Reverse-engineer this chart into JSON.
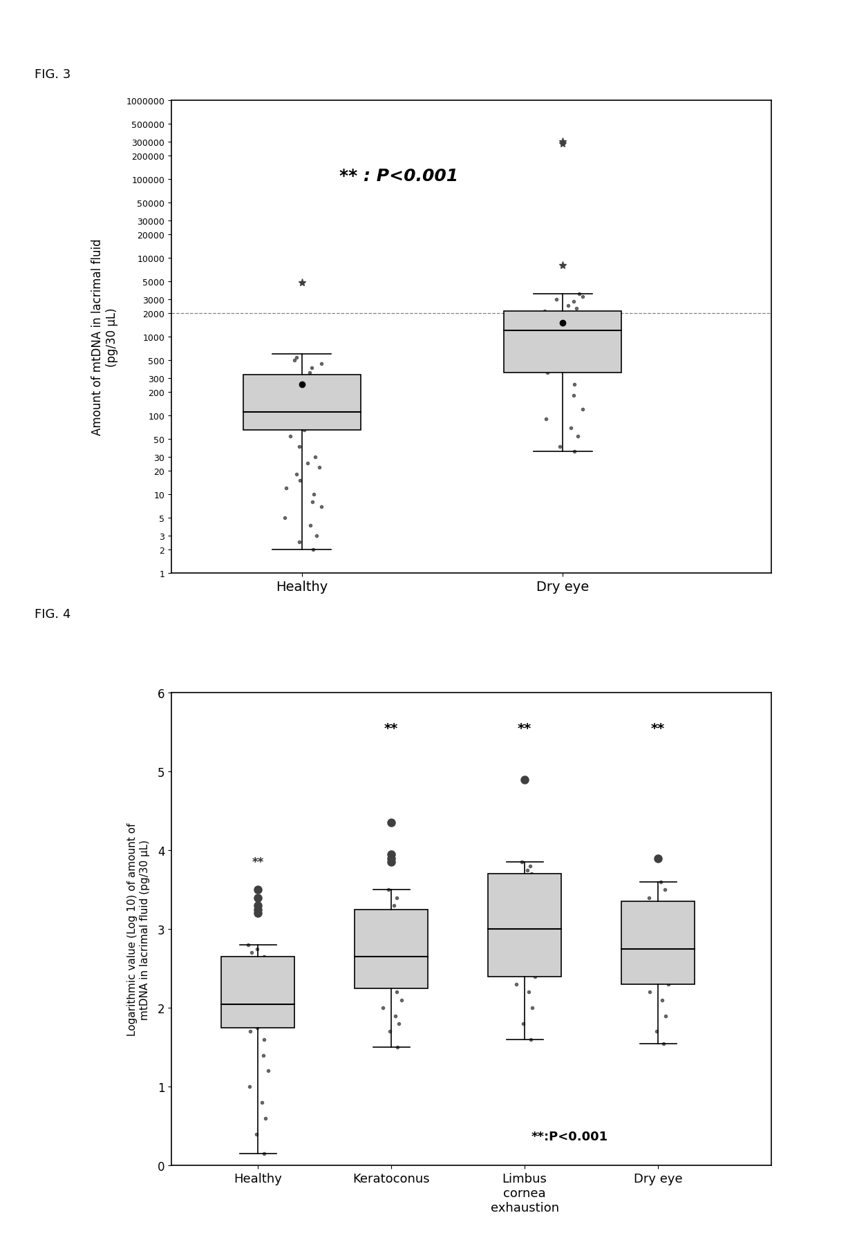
{
  "fig3": {
    "title": "FIG. 3",
    "ylabel_line1": "Amount of mtDNA in lacrimal fluid",
    "ylabel_line2": "(pg/30 μL)",
    "categories": [
      "Healthy",
      "Dry eye"
    ],
    "annotation": "** : P<0.001",
    "yticks": [
      1,
      2,
      3,
      5,
      10,
      20,
      30,
      50,
      100,
      200,
      300,
      500,
      1000,
      2000,
      3000,
      5000,
      10000,
      20000,
      30000,
      50000,
      100000,
      200000,
      300000,
      500000,
      1000000
    ],
    "ytick_labels": [
      "1",
      "2",
      "3",
      "5",
      "10",
      "20",
      "30",
      "50",
      "100",
      "200",
      "300",
      "500",
      "1000",
      "2000",
      "3000",
      "5000",
      "10000",
      "20000",
      "30000",
      "50000",
      "100000",
      "200000",
      "300000",
      "500000",
      "1000000"
    ],
    "healthy_box": {
      "q1": 65,
      "median": 110,
      "q3": 330,
      "whisker_low": 2,
      "whisker_high": 600,
      "mean": 250
    },
    "dryeye_box": {
      "q1": 350,
      "median": 1200,
      "q3": 2100,
      "whisker_low": 35,
      "whisker_high": 3500,
      "mean": 1500
    },
    "healthy_outliers": [
      4800
    ],
    "dryeye_outliers": [
      8000,
      300000,
      280000
    ],
    "healthy_scatter": [
      2,
      2.5,
      3,
      4,
      5,
      7,
      8,
      10,
      12,
      15,
      18,
      22,
      25,
      30,
      40,
      55,
      65,
      70,
      80,
      90,
      100,
      110,
      130,
      150,
      180,
      200,
      220,
      260,
      300,
      350,
      400,
      450,
      500,
      550
    ],
    "dryeye_scatter": [
      35,
      40,
      55,
      70,
      90,
      120,
      180,
      250,
      350,
      500,
      650,
      800,
      1000,
      1200,
      1400,
      1600,
      1900,
      2100,
      2300,
      2500,
      2800,
      3000,
      3200,
      3500
    ],
    "hline_y": 2000,
    "box_color": "#d0d0d0",
    "scatter_color": "#404040"
  },
  "fig4": {
    "title": "FIG. 4",
    "ylabel": "Logarithmic value (Log 10) of amount of\nmtDNA in lacrimal fluid (pg/30 μL)",
    "categories": [
      "Healthy",
      "Keratoconus",
      "Limbus\ncornea\nexhaustion",
      "Dry eye"
    ],
    "annotation": "**:P<0.001",
    "ylim": [
      0,
      6
    ],
    "yticks": [
      0,
      1,
      2,
      3,
      4,
      5,
      6
    ],
    "healthy_box": {
      "q1": 1.75,
      "median": 2.05,
      "q3": 2.65,
      "whisker_low": 0.15,
      "whisker_high": 2.8
    },
    "keratoconus_box": {
      "q1": 2.25,
      "median": 2.65,
      "q3": 3.25,
      "whisker_low": 1.5,
      "whisker_high": 3.5
    },
    "limbus_box": {
      "q1": 2.4,
      "median": 3.0,
      "q3": 3.7,
      "whisker_low": 1.6,
      "whisker_high": 3.85
    },
    "dryeye_box": {
      "q1": 2.3,
      "median": 2.75,
      "q3": 3.35,
      "whisker_low": 1.55,
      "whisker_high": 3.6
    },
    "healthy_outliers": [
      3.2,
      3.25,
      3.3,
      3.4,
      3.5
    ],
    "keratoconus_outliers": [
      4.35,
      3.85,
      3.9,
      3.95
    ],
    "limbus_outliers": [
      4.9
    ],
    "dryeye_outliers": [
      3.9
    ],
    "healthy_sig": false,
    "keratoconus_sig": true,
    "limbus_sig": true,
    "dryeye_sig": true,
    "box_color": "#d0d0d0",
    "scatter_color": "#404040",
    "scatter_data": [
      [
        0.15,
        0.4,
        0.6,
        0.8,
        1.0,
        1.2,
        1.4,
        1.6,
        1.7,
        1.75,
        1.8,
        1.85,
        1.9,
        1.95,
        2.0,
        2.05,
        2.1,
        2.15,
        2.2,
        2.25,
        2.3,
        2.4,
        2.5,
        2.6,
        2.65,
        2.7,
        2.75,
        2.8
      ],
      [
        1.5,
        1.7,
        1.8,
        1.9,
        2.0,
        2.1,
        2.2,
        2.3,
        2.4,
        2.5,
        2.6,
        2.65,
        2.7,
        2.75,
        2.8,
        2.9,
        3.0,
        3.1,
        3.2,
        3.3,
        3.4,
        3.5
      ],
      [
        1.6,
        1.8,
        2.0,
        2.2,
        2.3,
        2.4,
        2.5,
        2.6,
        2.7,
        2.8,
        2.9,
        3.0,
        3.1,
        3.2,
        3.3,
        3.4,
        3.5,
        3.6,
        3.7,
        3.75,
        3.8,
        3.85
      ],
      [
        1.55,
        1.7,
        1.9,
        2.1,
        2.2,
        2.3,
        2.4,
        2.5,
        2.6,
        2.7,
        2.75,
        2.8,
        2.9,
        3.0,
        3.1,
        3.2,
        3.3,
        3.4,
        3.5,
        3.6
      ]
    ]
  },
  "background_color": "#ffffff",
  "text_color": "#000000"
}
